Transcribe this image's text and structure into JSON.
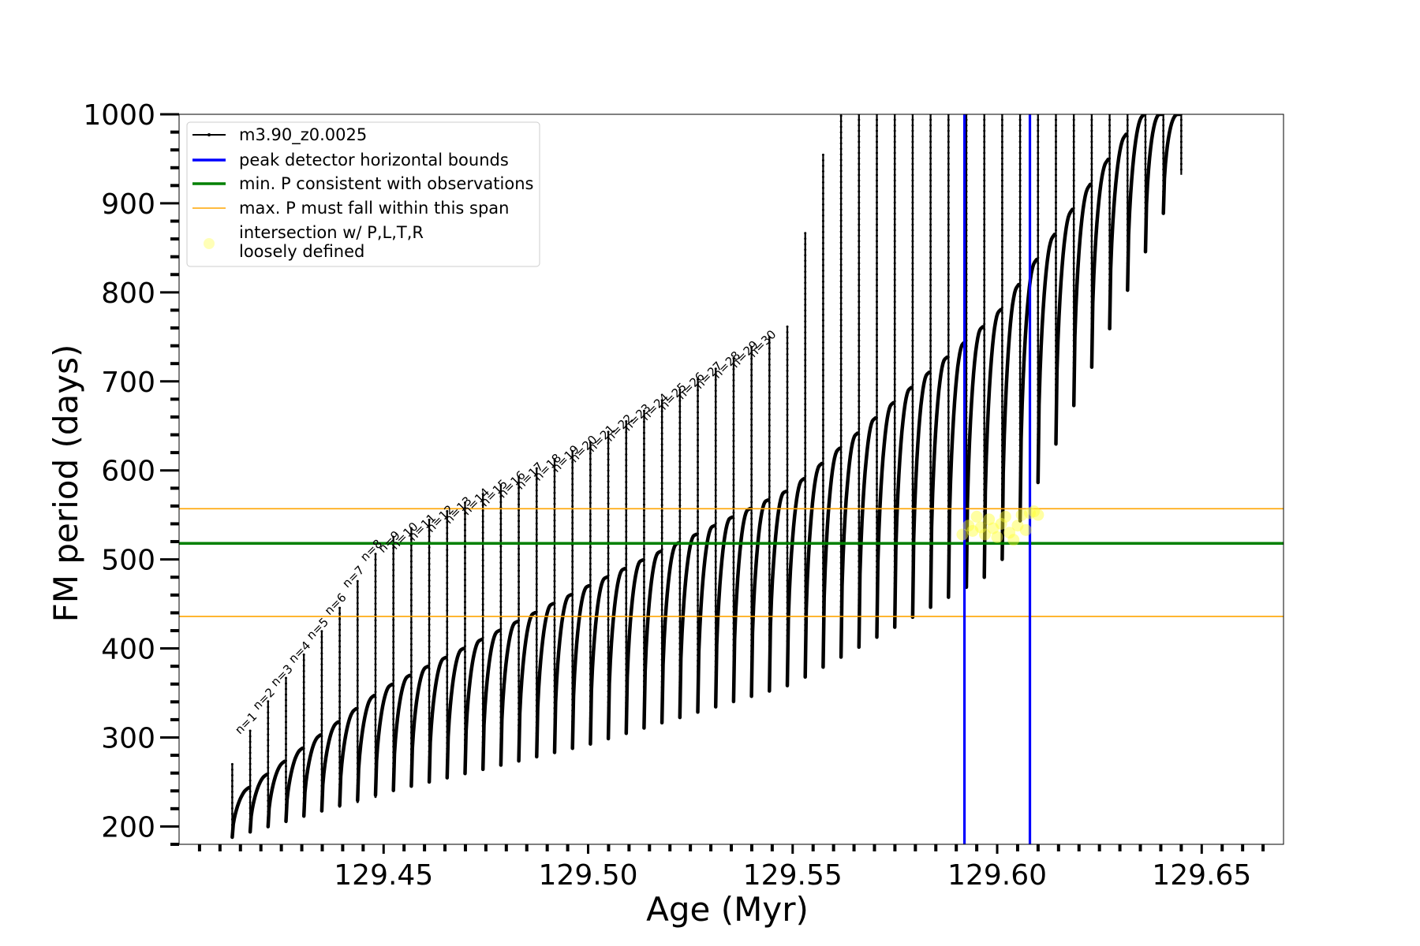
{
  "chart_data": {
    "type": "line",
    "xlabel": "Age (Myr)",
    "ylabel": "FM period (days)",
    "xlim": [
      129.4,
      129.67
    ],
    "ylim": [
      180,
      1000
    ],
    "x_ticks": [
      129.45,
      129.5,
      129.55,
      129.6,
      129.65
    ],
    "x_tick_labels": [
      "129.45",
      "129.50",
      "129.55",
      "129.60",
      "129.65"
    ],
    "y_ticks": [
      200,
      300,
      400,
      500,
      600,
      700,
      800,
      900,
      1000
    ],
    "y_tick_labels": [
      "200",
      "300",
      "400",
      "500",
      "600",
      "700",
      "800",
      "900",
      "1000"
    ],
    "grid": false,
    "legend_position": "top-left",
    "legend": [
      {
        "label": "m3.90_z0.0025",
        "color": "#000000",
        "kind": "line-marker"
      },
      {
        "label": "peak detector horizontal bounds",
        "color": "#0000ff",
        "kind": "line"
      },
      {
        "label": "min. P consistent with observations",
        "color": "#008000",
        "kind": "line"
      },
      {
        "label": "max. P must fall within this span",
        "color": "#ffa500",
        "kind": "thin-line"
      },
      {
        "label_lines": [
          "intersection w/ P,L,T,R",
          "loosely defined"
        ],
        "color": "#ffff99",
        "kind": "circle"
      }
    ],
    "series": [
      {
        "name": "m3.90_z0.0025",
        "color": "#000000",
        "pulse_count": 54,
        "pulse_age_start": 129.413,
        "pulse_age_end": 129.645,
        "lower_envelope": [
          [
            129.413,
            188
          ],
          [
            129.45,
            238
          ],
          [
            129.5,
            292
          ],
          [
            129.55,
            360
          ],
          [
            129.6,
            488
          ],
          [
            129.645,
            932
          ]
        ],
        "upper_envelope": [
          [
            129.413,
            230
          ],
          [
            129.45,
            355
          ],
          [
            129.5,
            470
          ],
          [
            129.55,
            580
          ],
          [
            129.6,
            775
          ],
          [
            129.635,
            1000
          ]
        ],
        "spike_top": [
          [
            129.413,
            270
          ],
          [
            129.42,
            330
          ],
          [
            129.44,
            450
          ],
          [
            129.45,
            520
          ],
          [
            129.5,
            630
          ],
          [
            129.55,
            765
          ],
          [
            129.555,
            930
          ],
          [
            129.562,
            1000
          ]
        ],
        "spike_min": [
          [
            129.413,
            188
          ],
          [
            129.5,
            300
          ],
          [
            129.6,
            520
          ],
          [
            129.645,
            932
          ]
        ]
      }
    ],
    "n_labels": [
      "n=1",
      "n=2",
      "n=3",
      "n=4",
      "n=5",
      "n=6",
      "n=7",
      "n=8",
      "n=9",
      "n=10",
      "n=11",
      "n=12",
      "n=13",
      "n=14",
      "n=15",
      "n=16",
      "n=17",
      "n=18",
      "n=19",
      "n=20",
      "n=21",
      "n=22",
      "n=23",
      "n=24",
      "n=25",
      "n=26",
      "n=27",
      "n=28",
      "n=29",
      "n=30"
    ],
    "vertical_lines": [
      {
        "x": 129.592,
        "color": "#0000ff"
      },
      {
        "x": 129.608,
        "color": "#0000ff"
      }
    ],
    "horizontal_lines": [
      {
        "y": 518,
        "color": "#008000",
        "role": "min. P consistent with observations"
      },
      {
        "y": 436,
        "color": "#ffa500",
        "role": "max. P span lower"
      },
      {
        "y": 557,
        "color": "#ffa500",
        "role": "max. P span upper"
      }
    ],
    "intersection_points": [
      [
        129.5915,
        528
      ],
      [
        129.593,
        538
      ],
      [
        129.594,
        532
      ],
      [
        129.595,
        548
      ],
      [
        129.596,
        536
      ],
      [
        129.597,
        528
      ],
      [
        129.598,
        545
      ],
      [
        129.599,
        535
      ],
      [
        129.6,
        525
      ],
      [
        129.601,
        540
      ],
      [
        129.602,
        548
      ],
      [
        129.603,
        530
      ],
      [
        129.604,
        522
      ],
      [
        129.605,
        538
      ],
      [
        129.606,
        550
      ],
      [
        129.607,
        533
      ],
      [
        129.608,
        552
      ],
      [
        129.609,
        554
      ],
      [
        129.61,
        550
      ]
    ]
  }
}
